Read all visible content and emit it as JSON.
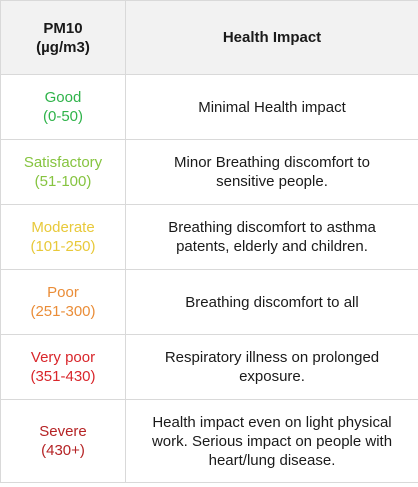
{
  "table": {
    "headers": {
      "pm10_line1": "PM10",
      "pm10_line2": "(µg/m3)",
      "impact": "Health Impact"
    },
    "rows": [
      {
        "category": "Good",
        "range": "(0-50)",
        "color": "#2fb34a",
        "impact": "Minimal Health impact"
      },
      {
        "category": "Satisfactory",
        "range": "(51-100)",
        "color": "#86c440",
        "impact": "Minor Breathing discomfort to sensitive people."
      },
      {
        "category": "Moderate",
        "range": "(101-250)",
        "color": "#e8c93a",
        "impact": "Breathing discomfort to asthma patents, elderly and children."
      },
      {
        "category": "Poor",
        "range": "(251-300)",
        "color": "#ea8d38",
        "impact": "Breathing discomfort to all"
      },
      {
        "category": "Very poor",
        "range": "(351-430)",
        "color": "#d9262b",
        "impact": "Respiratory illness on prolonged exposure."
      },
      {
        "category": "Severe",
        "range": "(430+)",
        "color": "#b52325",
        "impact": "Health impact even on light physical work. Serious impact on people with heart/lung disease."
      }
    ]
  }
}
